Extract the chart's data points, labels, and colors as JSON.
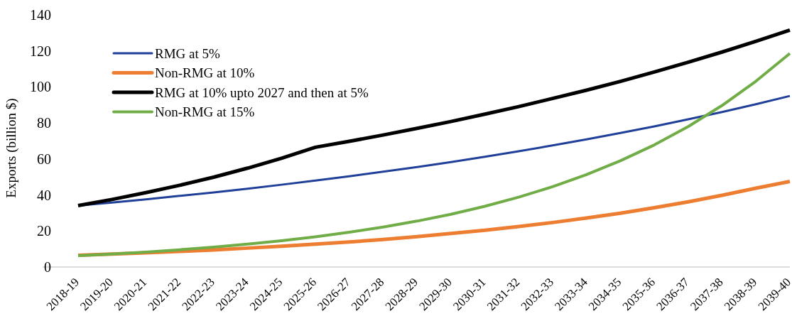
{
  "chart_data": {
    "type": "line",
    "ylabel": "Exports (billion $)",
    "categories": [
      "2018-19",
      "2019-20",
      "2020-21",
      "2021-22",
      "2022-23",
      "2023-24",
      "2024-25",
      "2025-26",
      "2026-27",
      "2027-28",
      "2028-29",
      "2029-30",
      "2030-31",
      "2031-32",
      "2032-33",
      "2033-34",
      "2034-35",
      "2035-36",
      "2036-37",
      "2037-38",
      "2038-39",
      "2039-40"
    ],
    "series": [
      {
        "name": "RMG at 5%",
        "color": "#1f3f99",
        "values": [
          34.1,
          35.8,
          37.6,
          39.5,
          41.4,
          43.5,
          45.7,
          48.0,
          50.4,
          52.9,
          55.5,
          58.3,
          61.2,
          64.3,
          67.5,
          70.9,
          74.4,
          78.1,
          82.0,
          86.1,
          90.4,
          95.0
        ]
      },
      {
        "name": "Non-RMG at 10%",
        "color": "#ed7d31",
        "values": [
          6.5,
          7.2,
          7.9,
          8.7,
          9.5,
          10.5,
          11.5,
          12.7,
          13.9,
          15.3,
          16.9,
          18.6,
          20.4,
          22.5,
          24.7,
          27.2,
          29.9,
          32.9,
          36.2,
          39.8,
          43.8,
          47.5
        ]
      },
      {
        "name": "RMG at 10% upto 2027 and then at 5%",
        "color": "#000000",
        "values": [
          34.1,
          37.5,
          41.3,
          45.4,
          49.9,
          54.9,
          60.4,
          66.5,
          69.8,
          73.3,
          77.0,
          80.8,
          84.9,
          89.1,
          93.6,
          98.2,
          103.1,
          108.3,
          113.7,
          119.4,
          125.4,
          131.6
        ]
      },
      {
        "name": "Non-RMG at 15%",
        "color": "#70ad47",
        "values": [
          6.3,
          7.2,
          8.3,
          9.6,
          11.0,
          12.7,
          14.6,
          16.8,
          19.3,
          22.2,
          25.5,
          29.3,
          33.7,
          38.8,
          44.6,
          51.3,
          59.0,
          67.8,
          78.0,
          89.7,
          103.2,
          118.6
        ]
      }
    ],
    "ylim": [
      0,
      140
    ],
    "yticks": [
      0,
      20,
      40,
      60,
      80,
      100,
      120,
      140
    ],
    "grid": false,
    "legend": "top left"
  }
}
